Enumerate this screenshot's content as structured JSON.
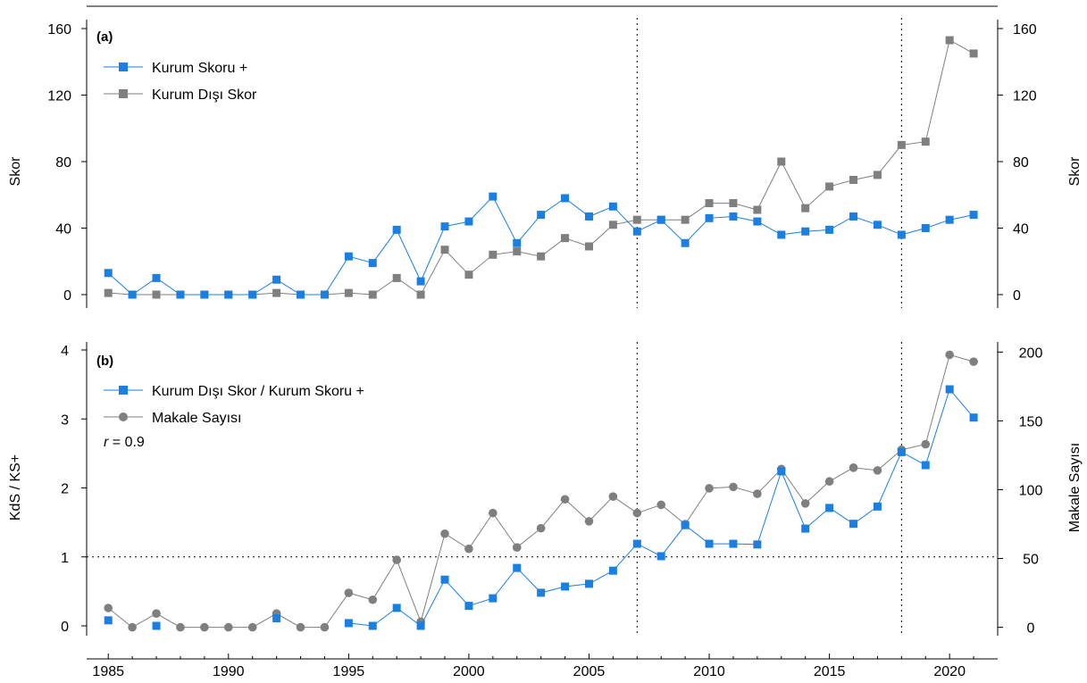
{
  "colors": {
    "blue": "#1a7fe0",
    "gray": "#7f7f7f",
    "axis": "#000000"
  },
  "chart_data": [
    {
      "panel_label": "(a)",
      "type": "line",
      "x": [
        1985,
        1986,
        1987,
        1988,
        1989,
        1990,
        1991,
        1992,
        1993,
        1994,
        1995,
        1996,
        1997,
        1998,
        1999,
        2000,
        2001,
        2002,
        2003,
        2004,
        2005,
        2006,
        2007,
        2008,
        2009,
        2010,
        2011,
        2012,
        2013,
        2014,
        2015,
        2016,
        2017,
        2018,
        2019,
        2020,
        2021
      ],
      "ylabel_left": "Skor",
      "ylabel_right": "Skor",
      "ylim": [
        0,
        160
      ],
      "yticks": [
        0,
        40,
        80,
        120,
        160
      ],
      "series": [
        {
          "name": "Kurum Skoru +",
          "color": "#1a7fe0",
          "marker": "square",
          "values": [
            13,
            0,
            10,
            0,
            0,
            0,
            0,
            9,
            0,
            0,
            23,
            19,
            39,
            8,
            41,
            44,
            59,
            31,
            48,
            58,
            47,
            53,
            38,
            45,
            31,
            46,
            47,
            44,
            36,
            38,
            39,
            47,
            42,
            36,
            40,
            45,
            48
          ],
          "missing_line_before": []
        },
        {
          "name": "Kurum Dışı Skor",
          "color": "#7f7f7f",
          "marker": "square",
          "values": [
            1,
            0,
            0,
            0,
            0,
            0,
            0,
            1,
            0,
            0,
            1,
            0,
            10,
            0,
            27,
            12,
            24,
            26,
            23,
            34,
            29,
            42,
            45,
            45,
            45,
            55,
            55,
            51,
            80,
            52,
            65,
            69,
            72,
            90,
            92,
            153,
            145
          ],
          "missing_line_before": []
        }
      ]
    },
    {
      "panel_label": "(b)",
      "type": "line",
      "x": [
        1985,
        1986,
        1987,
        1988,
        1989,
        1990,
        1991,
        1992,
        1993,
        1994,
        1995,
        1996,
        1997,
        1998,
        1999,
        2000,
        2001,
        2002,
        2003,
        2004,
        2005,
        2006,
        2007,
        2008,
        2009,
        2010,
        2011,
        2012,
        2013,
        2014,
        2015,
        2016,
        2017,
        2018,
        2019,
        2020,
        2021
      ],
      "ylabel_left": "KdS / KS+",
      "ylabel_right": "Makale Sayısı",
      "ylim_left": [
        0,
        4
      ],
      "yticks_left": [
        0,
        1,
        2,
        3,
        4
      ],
      "ylim_right": [
        -10,
        220
      ],
      "yticks_right": [
        0,
        50,
        100,
        150,
        200
      ],
      "annotation": {
        "italic": "r",
        "text": " = 0.9"
      },
      "reference_line_y": 1,
      "series": [
        {
          "name": "Kurum Dışı Skor / Kurum Skoru +",
          "color": "#1a7fe0",
          "marker": "square",
          "axis": "left",
          "values": [
            0.08,
            null,
            0.0,
            null,
            null,
            null,
            null,
            0.11,
            null,
            null,
            0.04,
            0.0,
            0.26,
            0.0,
            0.67,
            0.29,
            0.4,
            0.84,
            0.48,
            0.57,
            0.61,
            0.8,
            1.19,
            1.01,
            1.46,
            1.19,
            1.19,
            1.18,
            2.24,
            1.41,
            1.71,
            1.48,
            1.73,
            2.52,
            2.33,
            3.43,
            3.02
          ]
        },
        {
          "name": "Makale Sayısı",
          "color": "#7f7f7f",
          "marker": "circle",
          "axis": "right",
          "values": [
            14,
            0,
            10,
            0,
            0,
            0,
            0,
            10,
            0,
            0,
            25,
            20,
            49,
            4,
            68,
            57,
            83,
            58,
            72,
            93,
            77,
            95,
            83,
            89,
            75,
            101,
            102,
            97,
            115,
            90,
            106,
            116,
            114,
            129,
            133,
            198,
            193
          ]
        }
      ]
    }
  ],
  "xaxis": {
    "ticks": [
      1985,
      1990,
      1995,
      2000,
      2005,
      2010,
      2015,
      2020
    ],
    "xlim": [
      1984.1,
      2022
    ]
  },
  "vertical_lines_x": [
    2007,
    2018
  ]
}
